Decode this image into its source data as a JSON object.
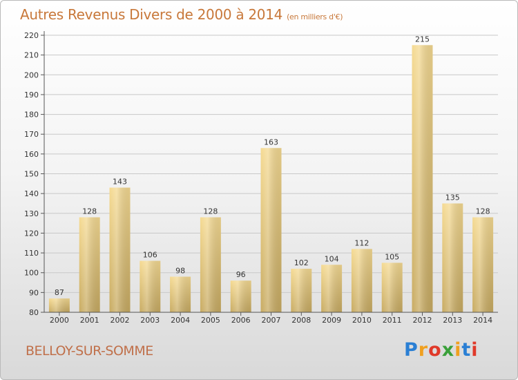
{
  "header": {
    "title": "Autres Revenus Divers de 2000 à 2014",
    "subtitle": "(en milliers d'€)"
  },
  "footer": {
    "commune": "BELLOY-SUR-SOMME",
    "logo_letters": [
      "P",
      "r",
      "o",
      "x",
      "i",
      "t",
      "i"
    ],
    "logo_colors": [
      "#2a7fd4",
      "#f0a020",
      "#e03a2a",
      "#3aa03a",
      "#f0a020",
      "#2a7fd4",
      "#e03a2a"
    ]
  },
  "chart_data": {
    "type": "bar",
    "categories": [
      "2000",
      "2001",
      "2002",
      "2003",
      "2004",
      "2005",
      "2006",
      "2007",
      "2008",
      "2009",
      "2010",
      "2011",
      "2012",
      "2013",
      "2014"
    ],
    "values": [
      87,
      128,
      143,
      106,
      98,
      128,
      96,
      163,
      102,
      104,
      112,
      105,
      215,
      135,
      128
    ],
    "ylim": [
      80,
      220
    ],
    "yticks": [
      80,
      90,
      100,
      110,
      120,
      130,
      140,
      150,
      160,
      170,
      180,
      190,
      200,
      210,
      220
    ],
    "grid": true,
    "bar_color": "#e6c986",
    "colors": {
      "axis": "#555555",
      "grid": "#c8c8c8",
      "text": "#333333"
    }
  }
}
